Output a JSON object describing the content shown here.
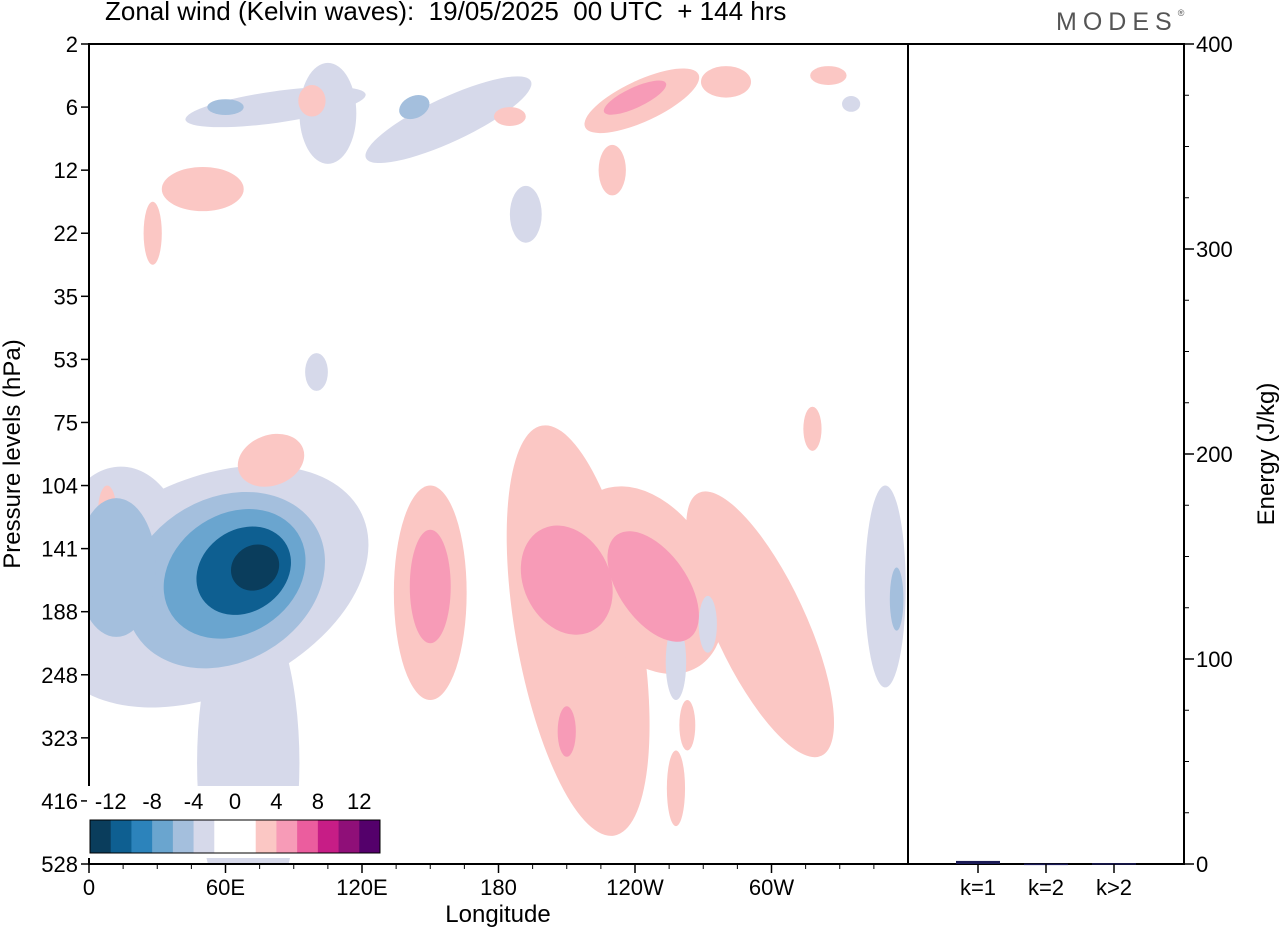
{
  "title": "Zonal wind (Kelvin waves):  19/05/2025  00 UTC  + 144 hrs",
  "brand": "MODES",
  "brand_mark": "®",
  "chart_data": [
    {
      "type": "heatmap",
      "title": "Zonal wind (Kelvin waves):  19/05/2025  00 UTC  + 144 hrs",
      "xlabel": "Longitude",
      "ylabel": "Pressure levels (hPa)",
      "x_ticks": [
        "0",
        "60E",
        "120E",
        "180",
        "120W",
        "60W"
      ],
      "y_ticks": [
        "2",
        "6",
        "12",
        "22",
        "35",
        "53",
        "75",
        "104",
        "141",
        "188",
        "248",
        "323",
        "416",
        "528"
      ],
      "grid": false,
      "colorbar": {
        "labels": [
          "-12",
          "-8",
          "-4",
          "0",
          "4",
          "8",
          "12"
        ],
        "colors": [
          "#0a3d5c",
          "#0e5f91",
          "#2c83bb",
          "#6aa5cf",
          "#a4bfdd",
          "#d6d9ea",
          "#ffffff",
          "#ffffff",
          "#fbc7c4",
          "#f79bb7",
          "#eb5d9e",
          "#c71d86",
          "#8f0f78",
          "#54006b"
        ]
      },
      "blobs": [
        {
          "lon": 73,
          "lev": 8.3,
          "w": 22,
          "h": 0.7,
          "val": -13,
          "rot": -35
        },
        {
          "lon": 68,
          "lev": 8.35,
          "w": 44,
          "h": 1.3,
          "val": -10.5,
          "rot": -35
        },
        {
          "lon": 64,
          "lev": 8.4,
          "w": 66,
          "h": 1.9,
          "val": -7.5,
          "rot": -33
        },
        {
          "lon": 60,
          "lev": 8.5,
          "w": 92,
          "h": 2.6,
          "val": -5,
          "rot": -30
        },
        {
          "lon": 52,
          "lev": 8.6,
          "w": 150,
          "h": 3.4,
          "val": -2.5,
          "rot": -25
        },
        {
          "lon": 12,
          "lev": 8.3,
          "w": 35,
          "h": 2.2,
          "val": -5
        },
        {
          "lon": 14,
          "lev": 8.3,
          "w": 60,
          "h": 3.2,
          "val": -2.5
        },
        {
          "lon": 70,
          "lev": 11.4,
          "w": 45,
          "h": 5.2,
          "val": -2.5
        },
        {
          "lon": 350,
          "lev": 8.6,
          "w": 18,
          "h": 3.2,
          "val": -2.5
        },
        {
          "lon": 355,
          "lev": 8.8,
          "w": 6,
          "h": 1.0,
          "val": -5
        },
        {
          "lon": 80,
          "lev": 6.6,
          "w": 30,
          "h": 0.8,
          "val": 2.5,
          "rot": -20
        },
        {
          "lon": 8,
          "lev": 7.4,
          "w": 8,
          "h": 0.8,
          "val": 2.5
        },
        {
          "lon": 150,
          "lev": 8.7,
          "w": 32,
          "h": 3.4,
          "val": 2.5
        },
        {
          "lon": 150,
          "lev": 8.6,
          "w": 18,
          "h": 1.8,
          "val": 5
        },
        {
          "lon": 215,
          "lev": 9.3,
          "w": 55,
          "h": 6.6,
          "val": 2.5,
          "rot": -10
        },
        {
          "lon": 245,
          "lev": 8.5,
          "w": 60,
          "h": 3.2,
          "val": 2.5,
          "rot": -30
        },
        {
          "lon": 210,
          "lev": 8.5,
          "w": 38,
          "h": 1.8,
          "val": 5,
          "rot": -25
        },
        {
          "lon": 248,
          "lev": 8.6,
          "w": 30,
          "h": 2.0,
          "val": 5,
          "rot": -35
        },
        {
          "lon": 210,
          "lev": 10.9,
          "w": 8,
          "h": 0.8,
          "val": 5
        },
        {
          "lon": 295,
          "lev": 9.2,
          "w": 40,
          "h": 4.6,
          "val": 2.5,
          "rot": -25
        },
        {
          "lon": 258,
          "lev": 11.8,
          "w": 8,
          "h": 1.2,
          "val": 2.5
        },
        {
          "lon": 263,
          "lev": 10.8,
          "w": 7,
          "h": 0.8,
          "val": 2.5
        },
        {
          "lon": 318,
          "lev": 6.1,
          "w": 8,
          "h": 0.7,
          "val": 2.5
        },
        {
          "lon": 258,
          "lev": 9.8,
          "w": 9,
          "h": 1.2,
          "val": -2.5
        },
        {
          "lon": 272,
          "lev": 9.2,
          "w": 8,
          "h": 0.9,
          "val": -2.5
        },
        {
          "lon": 50,
          "lev": 2.3,
          "w": 36,
          "h": 0.7,
          "val": 2.5
        },
        {
          "lon": 28,
          "lev": 3.0,
          "w": 8,
          "h": 1.0,
          "val": 2.5
        },
        {
          "lon": 82,
          "lev": 1.0,
          "w": 80,
          "h": 0.5,
          "val": -2.5,
          "rot": -8
        },
        {
          "lon": 60,
          "lev": 1.0,
          "w": 16,
          "h": 0.25,
          "val": -5
        },
        {
          "lon": 105,
          "lev": 1.1,
          "w": 25,
          "h": 1.6,
          "val": -2.5
        },
        {
          "lon": 158,
          "lev": 1.2,
          "w": 80,
          "h": 0.7,
          "val": -2.5,
          "rot": -25
        },
        {
          "lon": 143,
          "lev": 1.0,
          "w": 14,
          "h": 0.35,
          "val": -5,
          "rot": -25
        },
        {
          "lon": 98,
          "lev": 0.9,
          "w": 12,
          "h": 0.5,
          "val": 2.5
        },
        {
          "lon": 243,
          "lev": 0.9,
          "w": 55,
          "h": 0.65,
          "val": 2.5,
          "rot": -25
        },
        {
          "lon": 240,
          "lev": 0.85,
          "w": 30,
          "h": 0.32,
          "val": 5,
          "rot": -25
        },
        {
          "lon": 280,
          "lev": 0.6,
          "w": 22,
          "h": 0.5,
          "val": 2.5
        },
        {
          "lon": 230,
          "lev": 2.0,
          "w": 12,
          "h": 0.8,
          "val": 2.5
        },
        {
          "lon": 192,
          "lev": 2.7,
          "w": 14,
          "h": 0.9,
          "val": -2.5
        },
        {
          "lon": 185,
          "lev": 1.15,
          "w": 14,
          "h": 0.3,
          "val": 2.5
        },
        {
          "lon": 325,
          "lev": 0.5,
          "w": 16,
          "h": 0.3,
          "val": 2.5
        },
        {
          "lon": 335,
          "lev": 0.95,
          "w": 8,
          "h": 0.25,
          "val": -2.5
        },
        {
          "lon": 100,
          "lev": 5.2,
          "w": 10,
          "h": 0.6,
          "val": -2.5
        }
      ]
    },
    {
      "type": "bar",
      "categories": [
        "k=1",
        "k=2",
        "k>2"
      ],
      "values": [
        1.5,
        0.2,
        0.4
      ],
      "ylabel": "Energy (J/kg)",
      "ylim": [
        0,
        400
      ],
      "y_ticks": [
        "0",
        "100",
        "200",
        "300",
        "400"
      ],
      "bar_color": "#1a1a55"
    }
  ]
}
